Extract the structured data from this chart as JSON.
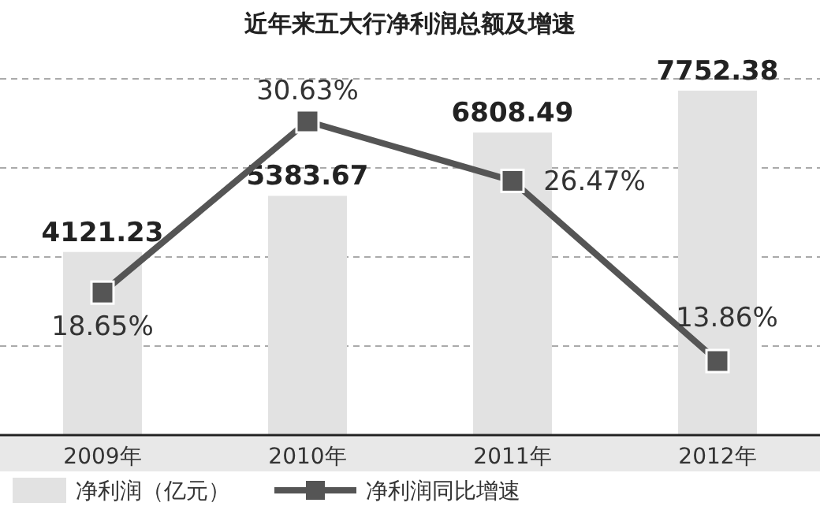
{
  "chart_data": {
    "type": "bar",
    "title": "近年来五大行净利润总额及增速",
    "categories": [
      "2009年",
      "2010年",
      "2011年",
      "2012年"
    ],
    "series": [
      {
        "name": "净利润（亿元）",
        "color": "#e2e2e2",
        "values": [
          4121.23,
          5383.67,
          6808.49,
          7752.38
        ],
        "value_labels": [
          "4121.23",
          "5383.67",
          "6808.49",
          "7752.38"
        ]
      },
      {
        "name": "净利润同比增速",
        "type": "line",
        "axis": "y2",
        "color": "#555555",
        "marker": "square",
        "values": [
          18.65,
          30.63,
          26.47,
          13.86
        ],
        "value_labels": [
          "18.65%",
          "30.63%",
          "26.47%",
          "13.86%"
        ]
      }
    ],
    "grid": "y",
    "legend": "bottom"
  }
}
